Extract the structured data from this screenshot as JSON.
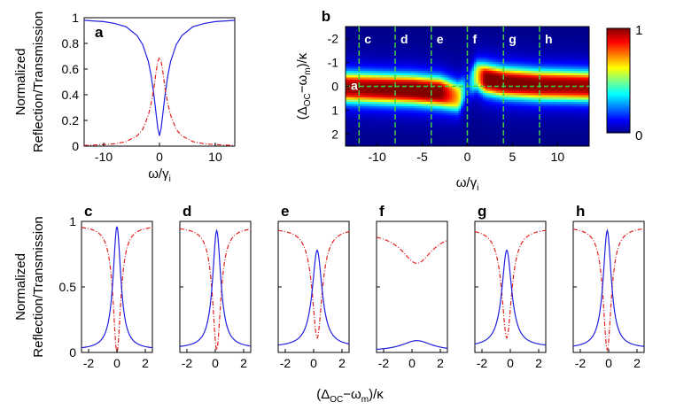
{
  "chart_data": [
    {
      "id": "a",
      "type": "line",
      "panel_label": "a",
      "ylabel_line1": "Normalized",
      "ylabel_line2": "Reflection/Transmission",
      "xlabel": "ω/γ",
      "xlabel_sub": "i",
      "xlim": [
        -13.5,
        13.5
      ],
      "ylim": [
        0,
        1
      ],
      "xticks": [
        -10,
        0,
        10
      ],
      "yticks": [
        0,
        0.2,
        0.4,
        0.6,
        0.8,
        1
      ],
      "ytick_labels": [
        "0",
        "0.2",
        "0.4",
        "0.6",
        "0.8",
        "1"
      ],
      "series": [
        {
          "name": "transmission",
          "style": "solid",
          "color": "#1f1fe0",
          "x": [
            -13.5,
            -12,
            -10,
            -8,
            -6,
            -4,
            -3,
            -2,
            -1.5,
            -1,
            -0.6,
            -0.3,
            0,
            0.3,
            0.6,
            1,
            1.5,
            2,
            3,
            4,
            6,
            8,
            10,
            12,
            13.5
          ],
          "y": [
            0.98,
            0.975,
            0.97,
            0.955,
            0.93,
            0.86,
            0.79,
            0.66,
            0.55,
            0.4,
            0.25,
            0.14,
            0.08,
            0.14,
            0.25,
            0.4,
            0.55,
            0.66,
            0.79,
            0.86,
            0.93,
            0.955,
            0.97,
            0.975,
            0.98
          ]
        },
        {
          "name": "reflection",
          "style": "dash-dot",
          "color": "#e0201f",
          "x": [
            -13.5,
            -12,
            -10,
            -8,
            -6,
            -4,
            -3,
            -2,
            -1.5,
            -1,
            -0.6,
            -0.3,
            0,
            0.3,
            0.6,
            1,
            1.5,
            2,
            3,
            4,
            6,
            8,
            10,
            12,
            13.5
          ],
          "y": [
            0.005,
            0.008,
            0.012,
            0.018,
            0.035,
            0.08,
            0.13,
            0.24,
            0.33,
            0.45,
            0.58,
            0.66,
            0.69,
            0.66,
            0.58,
            0.45,
            0.33,
            0.24,
            0.13,
            0.08,
            0.035,
            0.018,
            0.012,
            0.008,
            0.005
          ]
        }
      ]
    },
    {
      "id": "b",
      "type": "heatmap",
      "panel_label": "b",
      "ylabel": "(Δ",
      "ylabel_sub1": "OC",
      "ylabel_mid": "−ω",
      "ylabel_sub2": "m",
      "ylabel_end": ")/κ",
      "xlabel": "ω/γ",
      "xlabel_sub": "i",
      "xlim": [
        -13.5,
        13.5
      ],
      "ylim": [
        2.5,
        -2.5
      ],
      "xticks": [
        -10,
        -5,
        0,
        5,
        10
      ],
      "yticks": [
        -2,
        -1,
        0,
        1,
        2
      ],
      "colorbar": {
        "min": 0,
        "max": 1,
        "tick_labels": [
          "0",
          "1"
        ]
      },
      "ridge": {
        "description": "intensity ridge near y≈0, shifting from +0.3 (ω<0) to -0.3 (ω>0), dark gap near ω≈0..1",
        "x": [
          -13.5,
          -10,
          -6,
          -3,
          -1,
          0,
          1,
          2,
          4,
          8,
          13.5
        ],
        "center": [
          0.05,
          0.1,
          0.15,
          0.25,
          0.45,
          0.0,
          -0.45,
          -0.3,
          -0.15,
          -0.05,
          0.0
        ],
        "intensity": [
          0.9,
          0.92,
          0.95,
          0.95,
          0.6,
          0.05,
          0.5,
          0.95,
          0.95,
          0.92,
          0.9
        ]
      },
      "cut_lines": [
        {
          "label": "c",
          "x": -12
        },
        {
          "label": "d",
          "x": -8
        },
        {
          "label": "e",
          "x": -4
        },
        {
          "label": "f",
          "x": 0
        },
        {
          "label": "g",
          "x": 4
        },
        {
          "label": "h",
          "x": 8
        }
      ],
      "hline": {
        "label": "a",
        "y": 0
      }
    },
    {
      "id": "c-h",
      "type": "line",
      "ylabel_line1": "Normalized",
      "ylabel_line2": "Reflection/Transmission",
      "xlabel": "(Δ",
      "xlabel_sub1": "OC",
      "xlabel_mid": "−ω",
      "xlabel_sub2": "m",
      "xlabel_end": ")/κ",
      "xlim": [
        -2.5,
        2.5
      ],
      "ylim": [
        0,
        1
      ],
      "xticks": [
        -2,
        0,
        2
      ],
      "yticks": [
        0,
        0.5,
        1
      ],
      "ytick_labels": [
        "0",
        "0.5",
        "1"
      ],
      "panels": [
        {
          "label": "c",
          "blue_peak": 0.96,
          "blue_center": 0.0,
          "blue_width": 0.33,
          "blue_base": 0.02,
          "red_min": 0.0,
          "red_center": 0.0,
          "red_width": 0.33,
          "red_top": 0.97
        },
        {
          "label": "d",
          "blue_peak": 0.93,
          "blue_center": 0.1,
          "blue_width": 0.35,
          "blue_base": 0.03,
          "red_min": 0.02,
          "red_center": 0.1,
          "red_width": 0.35,
          "red_top": 0.96
        },
        {
          "label": "e",
          "blue_peak": 0.78,
          "blue_center": 0.25,
          "blue_width": 0.42,
          "blue_base": 0.04,
          "red_min": 0.11,
          "red_center": 0.25,
          "red_width": 0.42,
          "red_top": 0.95
        },
        {
          "label": "f",
          "blue_peak": 0.09,
          "blue_center": 0.35,
          "blue_width": 1.3,
          "blue_base": 0.01,
          "red_min": 0.68,
          "red_center": 0.35,
          "red_width": 1.3,
          "red_top": 0.92
        },
        {
          "label": "g",
          "blue_peak": 0.78,
          "blue_center": -0.25,
          "blue_width": 0.42,
          "blue_base": 0.04,
          "red_min": 0.11,
          "red_center": -0.25,
          "red_width": 0.42,
          "red_top": 0.95
        },
        {
          "label": "h",
          "blue_peak": 0.93,
          "blue_center": -0.1,
          "blue_width": 0.35,
          "blue_base": 0.03,
          "red_min": 0.02,
          "red_center": -0.1,
          "red_width": 0.35,
          "red_top": 0.96
        }
      ]
    }
  ]
}
